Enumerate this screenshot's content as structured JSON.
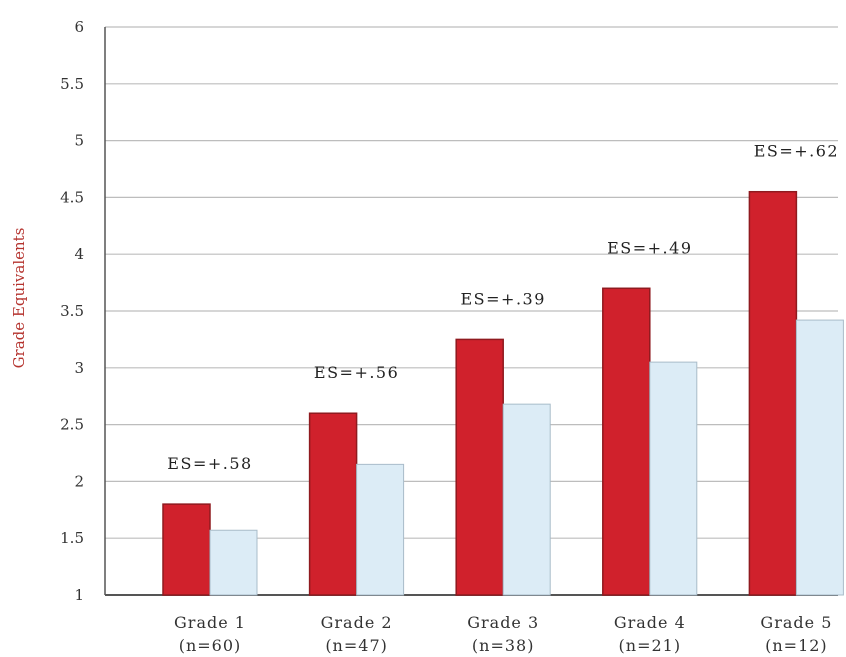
{
  "chart_data": {
    "type": "bar",
    "ylabel": "Grade Equivalents",
    "xlabel": "",
    "ylim": [
      1,
      6
    ],
    "ytick_step": 0.5,
    "yticks": [
      "1",
      "1.5",
      "2",
      "2.5",
      "3",
      "3.5",
      "4",
      "4.5",
      "5",
      "5.5",
      "6"
    ],
    "grid": true,
    "categories": [
      {
        "label": "Grade 1",
        "sublabel": "(n=60)"
      },
      {
        "label": "Grade 2",
        "sublabel": "(n=47)"
      },
      {
        "label": "Grade 3",
        "sublabel": "(n=38)"
      },
      {
        "label": "Grade 4",
        "sublabel": "(n=21)"
      },
      {
        "label": "Grade 5",
        "sublabel": "(n=12)"
      }
    ],
    "series": [
      {
        "values": [
          1.8,
          2.6,
          3.25,
          3.7,
          4.55
        ],
        "color": "#d0212c"
      },
      {
        "values": [
          1.57,
          2.15,
          2.68,
          3.05,
          3.42
        ],
        "color": "#dcecf6"
      }
    ],
    "annotations": [
      "ES=+.58",
      "ES=+.56",
      "ES=+.39",
      "ES=+.49",
      "ES=+.62"
    ]
  }
}
